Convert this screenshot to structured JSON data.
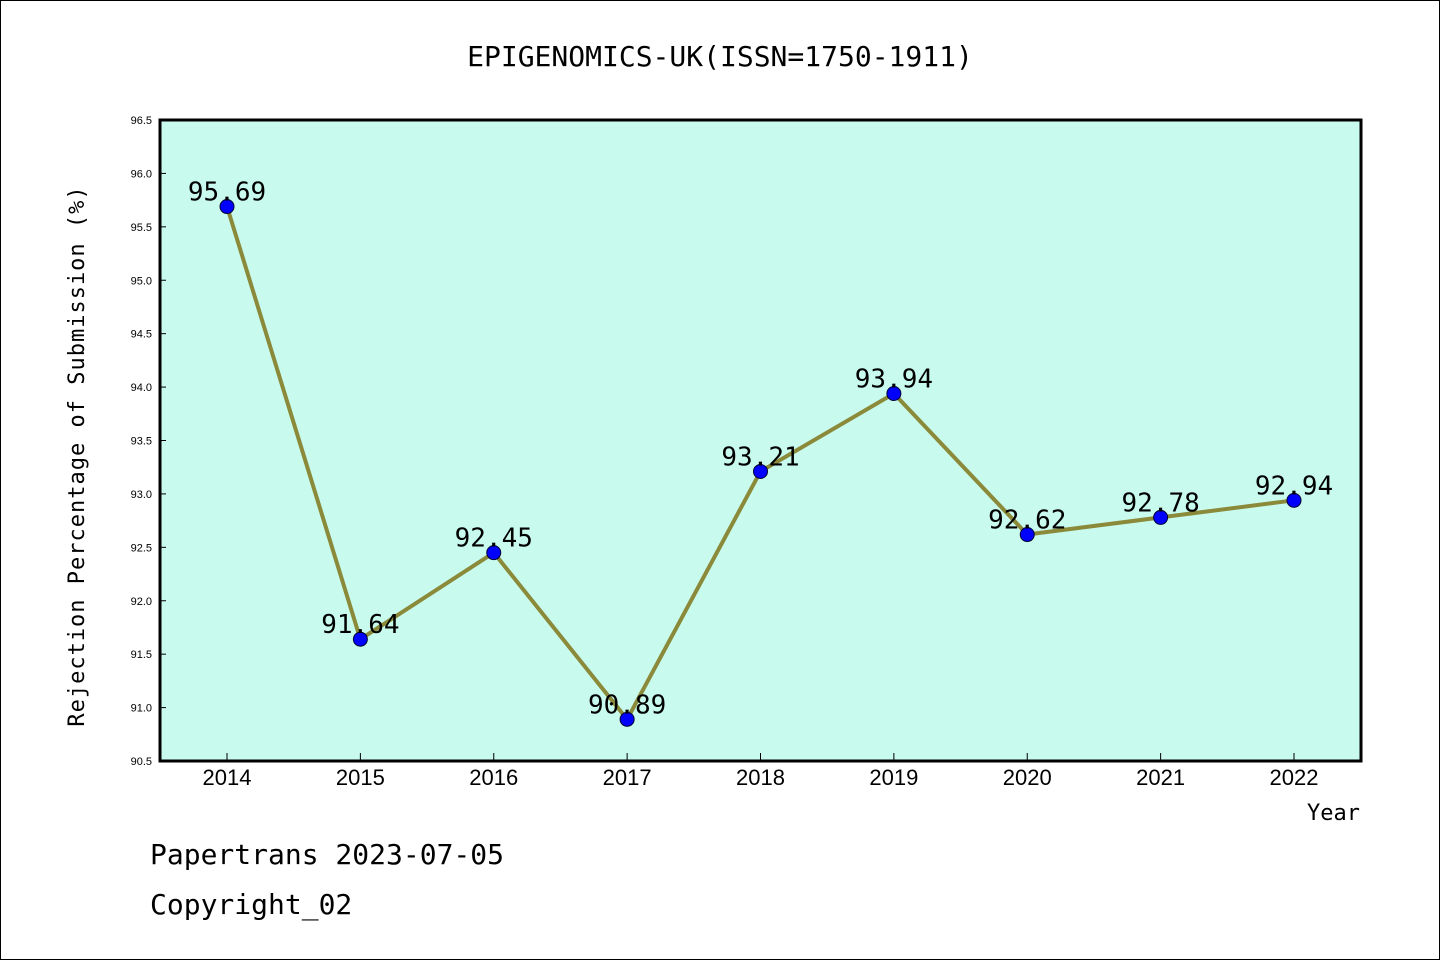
{
  "chart_data": {
    "type": "line",
    "title": "EPIGENOMICS-UK(ISSN=1750-1911)",
    "xlabel": "Year",
    "ylabel": "Rejection Percentage of Submission (%)",
    "categories": [
      "2014",
      "2015",
      "2016",
      "2017",
      "2018",
      "2019",
      "2020",
      "2021",
      "2022"
    ],
    "values": [
      95.69,
      91.64,
      92.45,
      90.89,
      93.21,
      93.94,
      92.62,
      92.78,
      92.94
    ],
    "data_labels": [
      "95.69",
      "91.64",
      "92.45",
      "90.89",
      "93.21",
      "93.94",
      "92.62",
      "92.78",
      "92.94"
    ],
    "ylim": [
      90.5,
      96.5
    ],
    "yticks": [
      "90.5",
      "91.0",
      "91.5",
      "92.0",
      "92.5",
      "93.0",
      "93.5",
      "94.0",
      "94.5",
      "95.0",
      "95.5",
      "96.0",
      "96.5"
    ],
    "grid": false,
    "legend": "none",
    "colors": {
      "plot_background": "#c8fbee",
      "line": "#8b8a3a",
      "marker": "#0000ff"
    }
  },
  "footer": {
    "line1": "Papertrans 2023-07-05",
    "line2": "Copyright_02"
  }
}
